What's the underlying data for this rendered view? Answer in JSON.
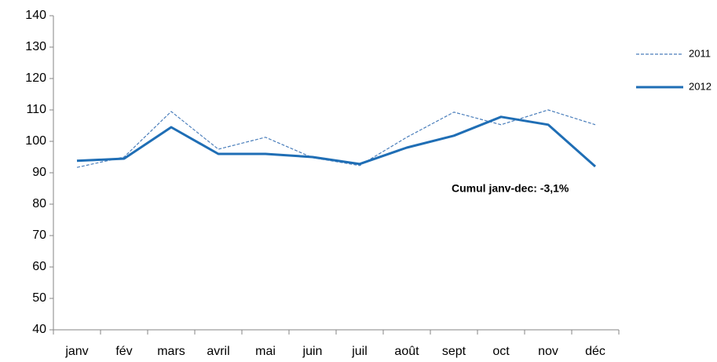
{
  "chart_data": {
    "type": "line",
    "categories": [
      "janv",
      "fév",
      "mars",
      "avril",
      "mai",
      "juin",
      "juil",
      "août",
      "sept",
      "oct",
      "nov",
      "déc"
    ],
    "series": [
      {
        "name": "2011",
        "color": "#4a7ebb",
        "style": "dashed",
        "values": [
          91.7,
          95,
          109.5,
          97.5,
          101.3,
          94.8,
          92.3,
          101.3,
          109.3,
          105.3,
          110,
          105.3
        ]
      },
      {
        "name": "2012",
        "color": "#1f6eb5",
        "style": "solid",
        "values": [
          93.8,
          94.5,
          104.5,
          96,
          96,
          95,
          92.8,
          98,
          101.8,
          107.8,
          105.3,
          92
        ]
      }
    ],
    "ylim": [
      40,
      140
    ],
    "yticks": [
      40,
      50,
      60,
      70,
      80,
      90,
      100,
      110,
      120,
      130,
      140
    ],
    "annotation": "Cumul janv-dec: -3,1%",
    "legend": "right"
  }
}
